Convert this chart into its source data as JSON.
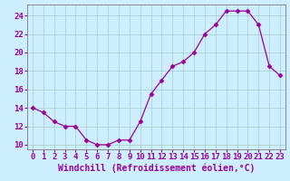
{
  "x": [
    0,
    1,
    2,
    3,
    4,
    5,
    6,
    7,
    8,
    9,
    10,
    11,
    12,
    13,
    14,
    15,
    16,
    17,
    18,
    19,
    20,
    21,
    22,
    23
  ],
  "y": [
    14,
    13.5,
    12.5,
    12,
    12,
    10.5,
    10,
    10,
    10.5,
    10.5,
    12.5,
    15.5,
    17,
    18.5,
    19,
    20,
    22,
    23,
    24.5,
    24.5,
    24.5,
    23,
    18.5,
    17.5
  ],
  "line_color": "#990099",
  "marker": "D",
  "marker_size": 2.5,
  "bg_color": "#cceeff",
  "grid_color": "#aacccc",
  "xlabel": "Windchill (Refroidissement éolien,°C)",
  "xlabel_color": "#990099",
  "xlabel_fontsize": 7,
  "tick_color": "#990099",
  "tick_fontsize": 6.5,
  "ylim": [
    9.5,
    25.2
  ],
  "xlim": [
    -0.5,
    23.5
  ],
  "yticks": [
    10,
    12,
    14,
    16,
    18,
    20,
    22,
    24
  ],
  "xticks": [
    0,
    1,
    2,
    3,
    4,
    5,
    6,
    7,
    8,
    9,
    10,
    11,
    12,
    13,
    14,
    15,
    16,
    17,
    18,
    19,
    20,
    21,
    22,
    23
  ]
}
